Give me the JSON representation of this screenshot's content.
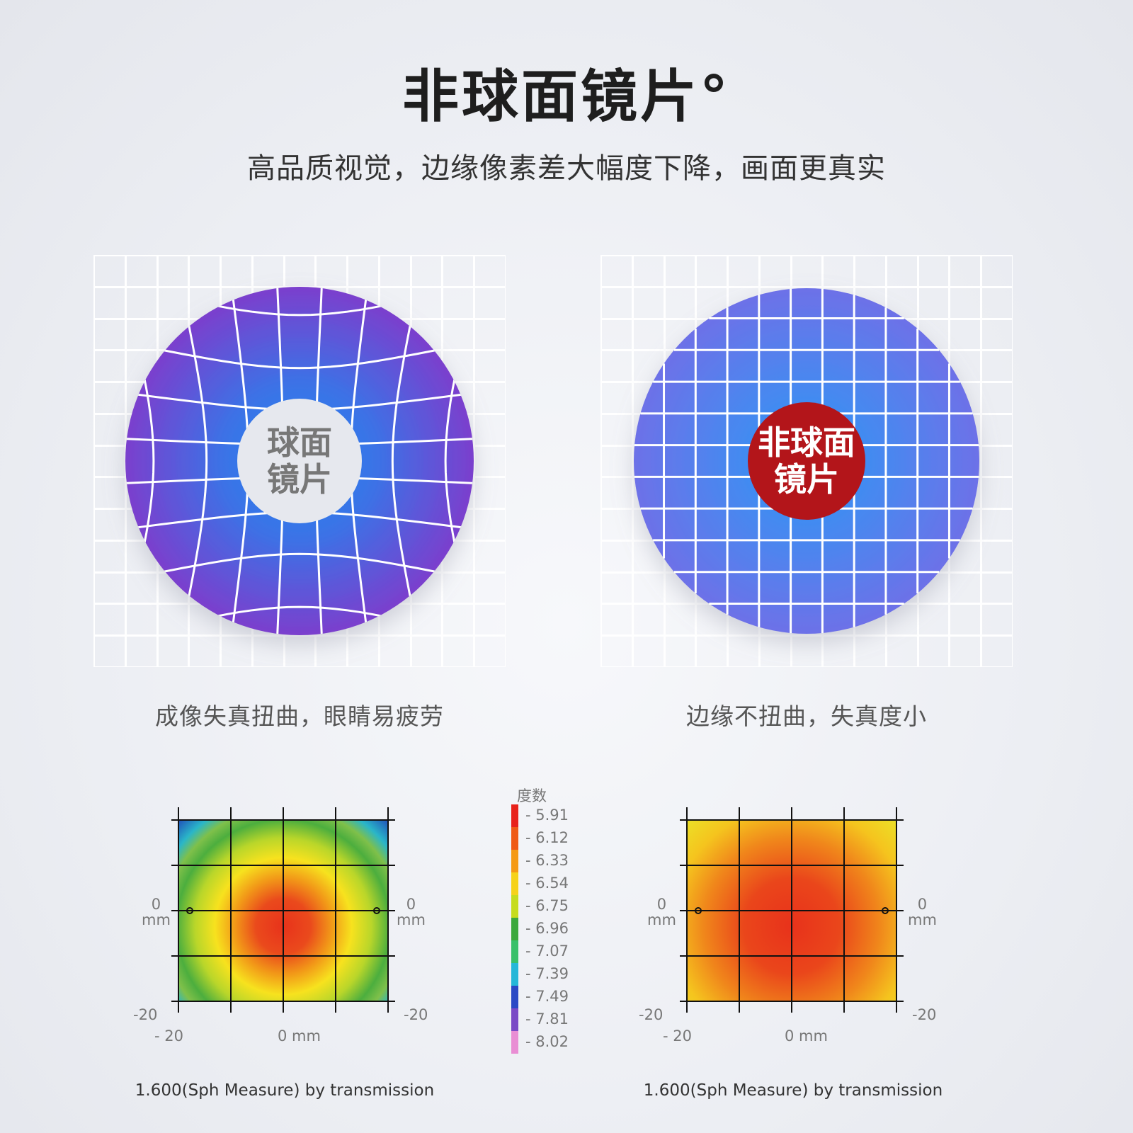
{
  "header": {
    "title": "非球面镜片°",
    "subtitle": "高品质视觉，边缘像素差大幅度下降，画面更真实"
  },
  "comparison": {
    "left": {
      "badge_line1": "球面",
      "badge_line2": "镜片",
      "caption": "成像失真扭曲，眼睛易疲劳"
    },
    "right": {
      "badge_line1": "非球面",
      "badge_line2": "镜片",
      "caption": "边缘不扭曲，失真度小"
    },
    "colors": {
      "spherical_edge": "#7b3fcd",
      "spherical_center": "#1f86f0",
      "aspheric_edge": "#6d71e8",
      "aspheric_center": "#2a97f6",
      "badge_red": "#b3151a"
    }
  },
  "plots": {
    "axis": {
      "zero_label": "0",
      "unit_label": "mm",
      "min_label": "-20",
      "x_min_label": "- 20",
      "x_center_label": "0 mm"
    },
    "left_title": "1.600(Sph Measure) by transmission",
    "right_title": "1.600(Sph Measure) by transmission"
  },
  "legend": {
    "title": "度数",
    "items": [
      {
        "label": "- 5.91",
        "color": "#e8221b"
      },
      {
        "label": "- 6.12",
        "color": "#ef5a16"
      },
      {
        "label": "- 6.33",
        "color": "#f59a15"
      },
      {
        "label": "- 6.54",
        "color": "#f6d21a"
      },
      {
        "label": "- 6.75",
        "color": "#c6dc1e"
      },
      {
        "label": "- 6.96",
        "color": "#3ca83d"
      },
      {
        "label": "- 7.07",
        "color": "#39c06a"
      },
      {
        "label": "- 7.39",
        "color": "#25b7d8"
      },
      {
        "label": "- 7.49",
        "color": "#2a49c5"
      },
      {
        "label": "- 7.81",
        "color": "#7a4ac6"
      },
      {
        "label": "- 8.02",
        "color": "#e98ed4"
      }
    ]
  }
}
